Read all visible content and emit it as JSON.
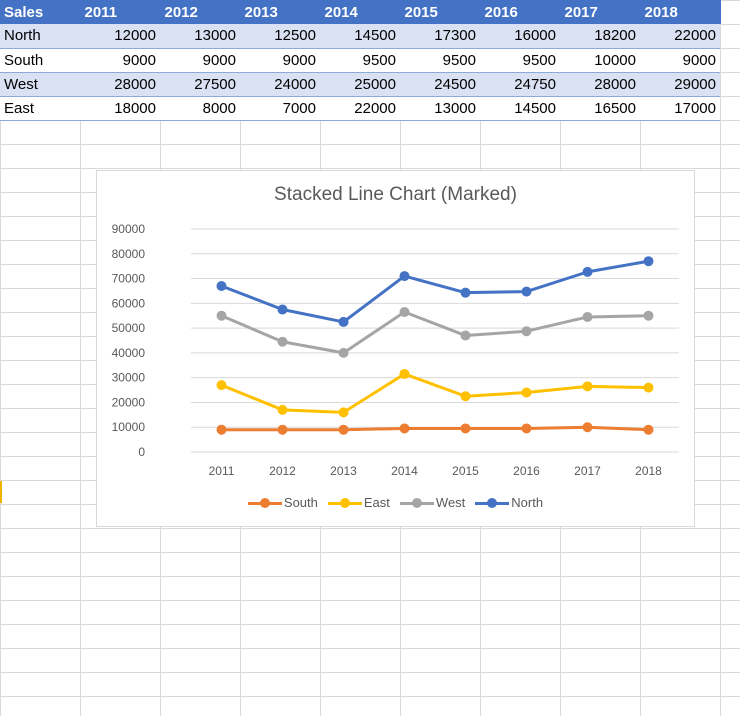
{
  "sheet": {
    "header": [
      "Sales",
      "2011",
      "2012",
      "2013",
      "2014",
      "2015",
      "2016",
      "2017",
      "2018"
    ],
    "rows": [
      {
        "region": "North",
        "values": [
          "12000",
          "13000",
          "12500",
          "14500",
          "17300",
          "16000",
          "18200",
          "22000"
        ]
      },
      {
        "region": "South",
        "values": [
          "9000",
          "9000",
          "9000",
          "9500",
          "9500",
          "9500",
          "10000",
          "9000"
        ]
      },
      {
        "region": "West",
        "values": [
          "28000",
          "27500",
          "24000",
          "25000",
          "24500",
          "24750",
          "28000",
          "29000"
        ]
      },
      {
        "region": "East",
        "values": [
          "18000",
          "8000",
          "7000",
          "22000",
          "13000",
          "14500",
          "16500",
          "17000"
        ]
      }
    ]
  },
  "chart_data": {
    "type": "line",
    "stacked": true,
    "markers": true,
    "title": "Stacked Line Chart (Marked)",
    "xlabel": "",
    "ylabel": "",
    "categories": [
      "2011",
      "2012",
      "2013",
      "2014",
      "2015",
      "2016",
      "2017",
      "2018"
    ],
    "y_ticks": [
      "0",
      "10000",
      "20000",
      "30000",
      "40000",
      "50000",
      "60000",
      "70000",
      "80000",
      "90000"
    ],
    "ylim": [
      0,
      90000
    ],
    "grid": true,
    "legend_position": "bottom",
    "series": [
      {
        "name": "South",
        "color": "#ed7d31",
        "values": [
          9000,
          9000,
          9000,
          9500,
          9500,
          9500,
          10000,
          9000
        ]
      },
      {
        "name": "East",
        "color": "#ffc000",
        "values": [
          18000,
          8000,
          7000,
          22000,
          13000,
          14500,
          16500,
          17000
        ]
      },
      {
        "name": "West",
        "color": "#a5a5a5",
        "values": [
          28000,
          27500,
          24000,
          25000,
          24500,
          24750,
          28000,
          29000
        ]
      },
      {
        "name": "North",
        "color": "#4472c4",
        "values": [
          12000,
          13000,
          12500,
          14500,
          17300,
          16000,
          18200,
          22000
        ]
      }
    ]
  }
}
